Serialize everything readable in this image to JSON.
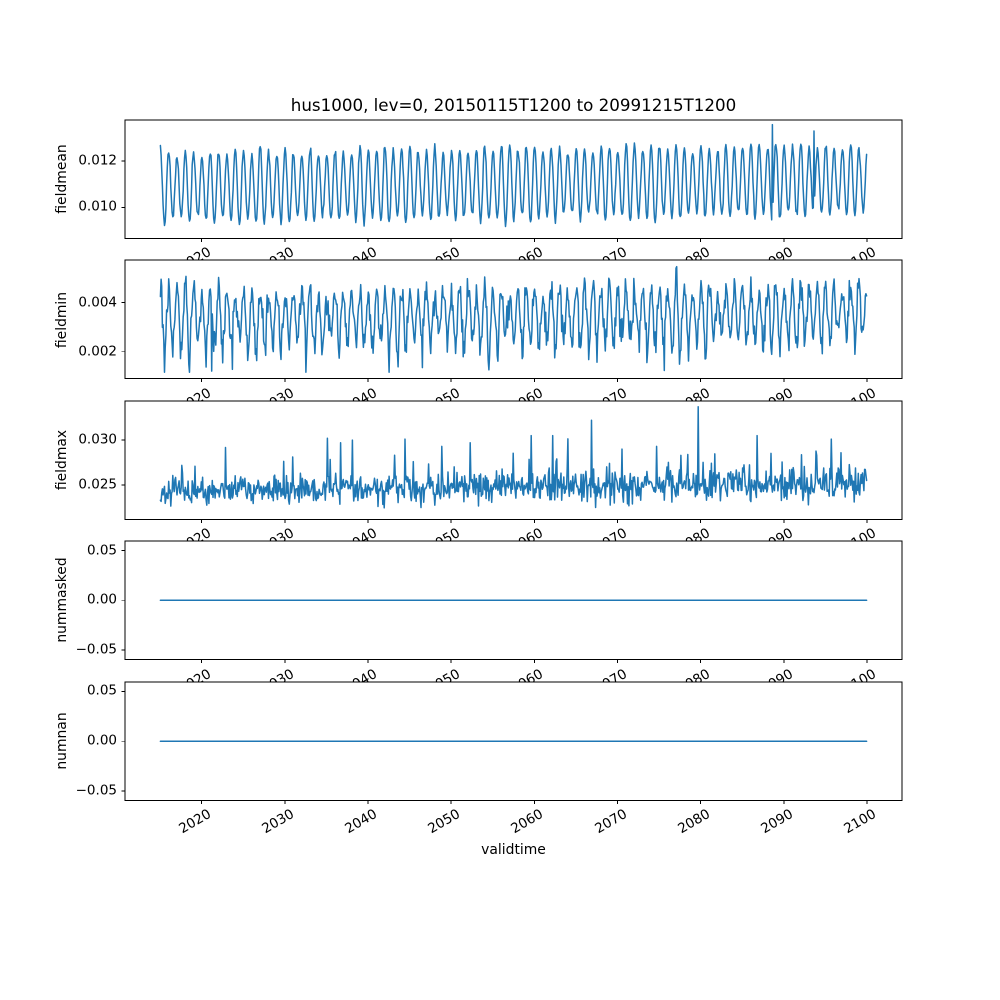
{
  "figure": {
    "title": "hus1000, lev=0, 20150115T1200 to 20991215T1200",
    "xlabel": "validtime",
    "background": "#ffffff",
    "line_color": "#1f77b4",
    "axis_color": "#000000",
    "xlim": [
      2010.79,
      2104.21
    ],
    "x_start": 2015.0417,
    "x_end": 2099.9583,
    "n_points": 1020,
    "xticks": {
      "values": [
        2020,
        2030,
        2040,
        2050,
        2060,
        2070,
        2080,
        2090,
        2100
      ],
      "labels": [
        "2020",
        "2030",
        "2040",
        "2050",
        "2060",
        "2070",
        "2080",
        "2090",
        "2100"
      ]
    }
  },
  "chart_data": [
    {
      "type": "line",
      "name": "fieldmean",
      "ylabel": "fieldmean",
      "ylim": [
        0.008651,
        0.013779
      ],
      "yticks": [
        {
          "v": 0.012,
          "label": "0.012"
        },
        {
          "v": 0.01,
          "label": "0.010"
        }
      ],
      "series": {
        "model": "seasonal",
        "seed": 7,
        "base": 0.01088,
        "trend": 0.0003,
        "amp": 0.00148,
        "amp_mod": [
          [
            2.13,
            0.1
          ],
          [
            0.41,
            0.06
          ]
        ],
        "phase_peak": 0.045,
        "noise": 8e-05,
        "dip_prob": 0,
        "dip_scale": 0,
        "dip_decay": 0,
        "clamp": [
          0.00895,
          0.0136
        ],
        "spikes": [
          {
            "x": 2088.6,
            "v": 0.01358
          },
          {
            "x": 2093.6,
            "v": 0.0133
          }
        ]
      }
    },
    {
      "type": "line",
      "name": "fieldmin",
      "ylabel": "fieldmin",
      "ylim": [
        0.000878,
        0.005756
      ],
      "yticks": [
        {
          "v": 0.004,
          "label": "0.004"
        },
        {
          "v": 0.002,
          "label": "0.002"
        }
      ],
      "series": {
        "model": "seasonal",
        "seed": 13,
        "base": 0.00336,
        "trend": 0.00022,
        "amp": 0.00102,
        "amp_mod": [
          [
            1.71,
            0.16
          ],
          [
            0.53,
            0.12
          ]
        ],
        "phase_peak": 0.045,
        "noise": 0.0003,
        "dip_prob": 0.5,
        "dip_scale": 0.00135,
        "dip_decay": 0.55,
        "clamp": [
          0.00113,
          0.00551
        ],
        "spikes": [
          {
            "x": 2021.2,
            "v": 0.00118
          },
          {
            "x": 2023.7,
            "v": 0.00125
          },
          {
            "x": 2077.1,
            "v": 0.00548
          }
        ]
      }
    },
    {
      "type": "line",
      "name": "fieldmax",
      "ylabel": "fieldmax",
      "ylim": [
        0.021184,
        0.034342
      ],
      "yticks": [
        {
          "v": 0.03,
          "label": "0.030"
        },
        {
          "v": 0.025,
          "label": "0.025"
        }
      ],
      "series": {
        "model": "noisy",
        "seed": 21,
        "base": 0.02435,
        "trend": 0.00075,
        "noise": 0.00085,
        "spike_prob": 0.05,
        "spike_scale": 0.004,
        "clamp": [
          0.022,
          0.0338
        ],
        "spikes": [
          {
            "x": 2035.1,
            "v": 0.0302
          },
          {
            "x": 2036.7,
            "v": 0.0297
          },
          {
            "x": 2038.1,
            "v": 0.03
          },
          {
            "x": 2044.5,
            "v": 0.0301
          },
          {
            "x": 2048.9,
            "v": 0.0293
          },
          {
            "x": 2052.3,
            "v": 0.0297
          },
          {
            "x": 2059.6,
            "v": 0.0305
          },
          {
            "x": 2062.2,
            "v": 0.0305
          },
          {
            "x": 2066.9,
            "v": 0.0322
          },
          {
            "x": 2074.7,
            "v": 0.0293
          },
          {
            "x": 2079.7,
            "v": 0.0337
          },
          {
            "x": 2086.8,
            "v": 0.0305
          },
          {
            "x": 2095.7,
            "v": 0.0301
          }
        ]
      }
    },
    {
      "type": "line",
      "name": "nummasked",
      "ylabel": "nummasked",
      "ylim": [
        -0.0595,
        0.0595
      ],
      "yticks": [
        {
          "v": 0.05,
          "label": "0.05"
        },
        {
          "v": 0.0,
          "label": "0.00"
        },
        {
          "v": -0.05,
          "label": "−0.05"
        }
      ],
      "series": {
        "model": "constant",
        "value": 0.0
      }
    },
    {
      "type": "line",
      "name": "numnan",
      "ylabel": "numnan",
      "ylim": [
        -0.0595,
        0.0595
      ],
      "yticks": [
        {
          "v": 0.05,
          "label": "0.05"
        },
        {
          "v": 0.0,
          "label": "0.00"
        },
        {
          "v": -0.05,
          "label": "−0.05"
        }
      ],
      "series": {
        "model": "constant",
        "value": 0.0
      }
    }
  ]
}
